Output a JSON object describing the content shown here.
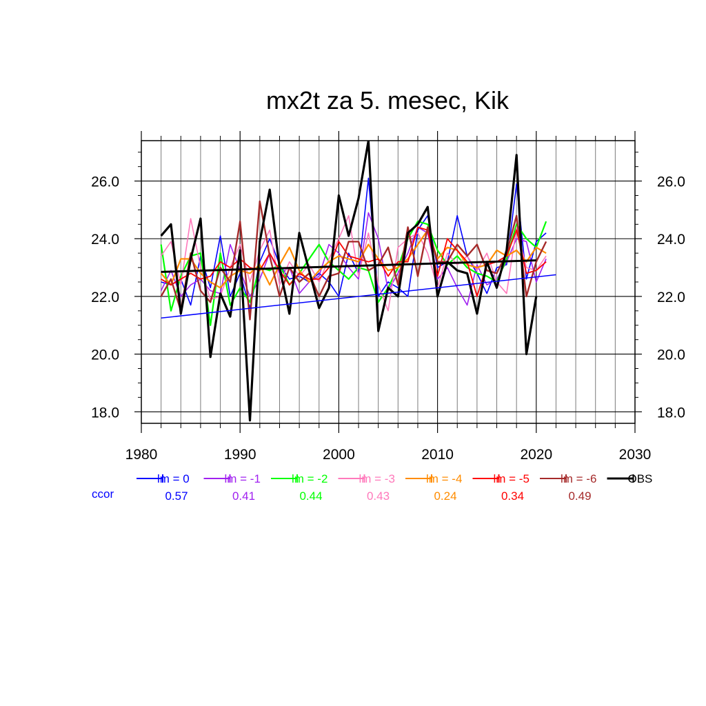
{
  "chart_data": {
    "type": "line",
    "title": "mx2t za 5. mesec, Kik",
    "xlabel": "",
    "ylabel": "",
    "xlim": [
      1980,
      2030
    ],
    "ylim": [
      17.6,
      27.4
    ],
    "x_ticks": [
      1980,
      1990,
      2000,
      2010,
      2020,
      2030
    ],
    "x_tick_labels": [
      "1980",
      "1990",
      "2000",
      "2010",
      "2020",
      "2030"
    ],
    "y_ticks": [
      18,
      20,
      22,
      24,
      26
    ],
    "y_tick_labels": [
      "18.0",
      "20.0",
      "22.0",
      "24.0",
      "26.0"
    ],
    "grid": true,
    "legend_position": "bottom",
    "ccor_label": "ccor",
    "series": [
      {
        "name": "lm = 0",
        "color": "#0000ff",
        "width": 1.6,
        "ccor": "0.57",
        "x": [
          1982,
          1983,
          1984,
          1985,
          1986,
          1987,
          1988,
          1989,
          1990,
          1991,
          1992,
          1993,
          1994,
          1995,
          1996,
          1997,
          1998,
          1999,
          2000,
          2001,
          2002,
          2003,
          2004,
          2005,
          2006,
          2007,
          2008,
          2009,
          2010,
          2011,
          2012,
          2013,
          2014,
          2015,
          2016,
          2017,
          2018,
          2019,
          2020,
          2021
        ],
        "values": [
          22.5,
          22.4,
          22.6,
          21.7,
          23.4,
          22.3,
          24.1,
          22.0,
          22.8,
          21.6,
          23.2,
          24.0,
          23.1,
          22.6,
          22.7,
          22.5,
          22.8,
          22.5,
          22.0,
          23.5,
          22.8,
          26.1,
          22.0,
          22.5,
          22.3,
          22.0,
          24.3,
          24.8,
          23.0,
          23.2,
          24.8,
          23.4,
          22.8,
          22.1,
          23.0,
          23.1,
          25.9,
          22.6,
          23.9,
          24.2
        ],
        "trend": [
          21.25,
          22.75
        ]
      },
      {
        "name": "lm = -1",
        "color": "#a020f0",
        "width": 1.6,
        "ccor": "0.41",
        "x": [
          1982,
          1983,
          1984,
          1985,
          1986,
          1987,
          1988,
          1989,
          1990,
          1991,
          1992,
          1993,
          1994,
          1995,
          1996,
          1997,
          1998,
          1999,
          2000,
          2001,
          2002,
          2003,
          2004,
          2005,
          2006,
          2007,
          2008,
          2009,
          2010,
          2011,
          2012,
          2013,
          2014,
          2015,
          2016,
          2017,
          2018,
          2019,
          2020,
          2021
        ],
        "values": [
          22.2,
          22.9,
          22.0,
          22.4,
          22.6,
          22.2,
          22.1,
          23.8,
          22.9,
          22.0,
          22.6,
          23.5,
          22.8,
          23.0,
          22.1,
          22.5,
          22.7,
          23.8,
          23.5,
          23.0,
          22.6,
          24.9,
          24.0,
          22.2,
          22.8,
          23.5,
          24.4,
          24.2,
          22.6,
          23.0,
          22.3,
          21.7,
          23.1,
          22.4,
          22.6,
          23.2,
          24.0,
          23.9,
          22.5,
          23.3
        ]
      },
      {
        "name": "lm = -2",
        "color": "#00ff00",
        "width": 2.2,
        "ccor": "0.44",
        "x": [
          1982,
          1983,
          1984,
          1985,
          1986,
          1987,
          1988,
          1989,
          1990,
          1991,
          1992,
          1993,
          1994,
          1995,
          1996,
          1997,
          1998,
          1999,
          2000,
          2001,
          2002,
          2003,
          2004,
          2005,
          2006,
          2007,
          2008,
          2009,
          2010,
          2011,
          2012,
          2013,
          2014,
          2015,
          2016,
          2017,
          2018,
          2019,
          2020,
          2021
        ],
        "values": [
          23.8,
          21.5,
          22.7,
          23.4,
          23.5,
          21.0,
          23.5,
          21.7,
          22.3,
          21.8,
          23.0,
          22.9,
          23.1,
          22.4,
          22.8,
          23.3,
          23.8,
          23.2,
          22.9,
          22.6,
          23.0,
          22.9,
          21.8,
          22.3,
          23.0,
          24.0,
          24.6,
          24.5,
          23.6,
          23.1,
          23.4,
          23.0,
          22.8,
          22.7,
          22.5,
          23.3,
          24.5,
          24.0,
          23.7,
          24.6
        ]
      },
      {
        "name": "lm = -3",
        "color": "#ff79bb",
        "width": 1.6,
        "ccor": "0.43",
        "x": [
          1982,
          1983,
          1984,
          1985,
          1986,
          1987,
          1988,
          1989,
          1990,
          1991,
          1992,
          1993,
          1994,
          1995,
          1996,
          1997,
          1998,
          1999,
          2000,
          2001,
          2002,
          2003,
          2004,
          2005,
          2006,
          2007,
          2008,
          2009,
          2010,
          2011,
          2012,
          2013,
          2014,
          2015,
          2016,
          2017,
          2018,
          2019,
          2020,
          2021
        ],
        "values": [
          23.4,
          23.9,
          22.4,
          24.7,
          23.0,
          21.9,
          22.0,
          23.0,
          23.8,
          22.5,
          23.6,
          24.3,
          22.4,
          23.2,
          22.7,
          23.1,
          22.5,
          23.3,
          24.0,
          24.8,
          22.7,
          24.2,
          22.4,
          21.5,
          23.7,
          24.0,
          24.2,
          23.5,
          22.3,
          23.5,
          23.1,
          23.4,
          22.9,
          23.5,
          22.5,
          22.1,
          24.4,
          23.0,
          22.9,
          23.4
        ]
      },
      {
        "name": "lm = -4",
        "color": "#ff8c00",
        "width": 2.2,
        "ccor": "0.24",
        "x": [
          1982,
          1983,
          1984,
          1985,
          1986,
          1987,
          1988,
          1989,
          1990,
          1991,
          1992,
          1993,
          1994,
          1995,
          1996,
          1997,
          1998,
          1999,
          2000,
          2001,
          2002,
          2003,
          2004,
          2005,
          2006,
          2007,
          2008,
          2009,
          2010,
          2011,
          2012,
          2013,
          2014,
          2015,
          2016,
          2017,
          2018,
          2019,
          2020,
          2021
        ],
        "values": [
          22.8,
          22.4,
          23.3,
          23.3,
          22.8,
          22.5,
          22.3,
          22.7,
          22.9,
          22.8,
          23.1,
          22.4,
          23.1,
          23.7,
          22.9,
          22.5,
          22.9,
          23.2,
          23.4,
          23.3,
          23.2,
          23.8,
          23.3,
          22.9,
          23.0,
          23.3,
          23.8,
          24.3,
          23.3,
          23.7,
          23.6,
          23.1,
          23.0,
          23.1,
          23.6,
          23.4,
          23.6,
          23.2,
          23.7,
          23.5
        ]
      },
      {
        "name": "lm = -5",
        "color": "#ff0000",
        "width": 1.8,
        "ccor": "0.34",
        "x": [
          1982,
          1983,
          1984,
          1985,
          1986,
          1987,
          1988,
          1989,
          1990,
          1991,
          1992,
          1993,
          1994,
          1995,
          1996,
          1997,
          1998,
          1999,
          2000,
          2001,
          2002,
          2003,
          2004,
          2005,
          2006,
          2007,
          2008,
          2009,
          2010,
          2011,
          2012,
          2013,
          2014,
          2015,
          2016,
          2017,
          2018,
          2019,
          2020,
          2021
        ],
        "values": [
          22.6,
          22.4,
          22.6,
          22.8,
          22.6,
          22.7,
          23.2,
          23.0,
          23.3,
          23.0,
          22.9,
          23.5,
          22.9,
          22.4,
          22.8,
          22.6,
          22.6,
          23.0,
          23.9,
          23.4,
          23.3,
          23.2,
          23.3,
          22.7,
          23.2,
          23.2,
          24.4,
          24.3,
          22.7,
          24.0,
          23.6,
          23.2,
          22.0,
          23.1,
          23.2,
          23.4,
          24.3,
          22.8,
          22.9,
          23.2
        ]
      },
      {
        "name": "lm = -6",
        "color": "#a52a2a",
        "width": 2.4,
        "ccor": "0.49",
        "x": [
          1982,
          1983,
          1984,
          1985,
          1986,
          1987,
          1988,
          1989,
          1990,
          1991,
          1992,
          1993,
          1994,
          1995,
          1996,
          1997,
          1998,
          1999,
          2000,
          2001,
          2002,
          2003,
          2004,
          2005,
          2006,
          2007,
          2008,
          2009,
          2010,
          2011,
          2012,
          2013,
          2014,
          2015,
          2016,
          2017,
          2018,
          2019,
          2020,
          2021
        ],
        "values": [
          22.0,
          22.6,
          21.5,
          23.5,
          22.2,
          21.8,
          23.0,
          22.5,
          24.6,
          21.2,
          25.3,
          23.4,
          22.0,
          23.0,
          22.5,
          22.8,
          22.0,
          22.7,
          22.8,
          23.9,
          23.9,
          22.9,
          23.1,
          23.7,
          22.4,
          24.4,
          22.7,
          24.4,
          23.2,
          23.2,
          23.8,
          23.4,
          23.8,
          22.9,
          22.8,
          23.5,
          24.8,
          22.0,
          23.2,
          23.9
        ]
      },
      {
        "name": "OBS",
        "color": "#000000",
        "width": 3.2,
        "ccor": "",
        "x": [
          1982,
          1983,
          1984,
          1985,
          1986,
          1987,
          1988,
          1989,
          1990,
          1991,
          1992,
          1993,
          1994,
          1995,
          1996,
          1997,
          1998,
          1999,
          2000,
          2001,
          2002,
          2003,
          2004,
          2005,
          2006,
          2007,
          2008,
          2009,
          2010,
          2011,
          2012,
          2013,
          2014,
          2015,
          2016,
          2017,
          2018,
          2019,
          2020
        ],
        "values": [
          24.1,
          24.5,
          21.4,
          23.3,
          24.7,
          19.9,
          22.1,
          21.3,
          23.6,
          17.7,
          23.9,
          25.7,
          23.0,
          21.4,
          24.2,
          22.9,
          21.6,
          22.3,
          25.5,
          24.1,
          25.4,
          27.4,
          20.8,
          22.3,
          22.0,
          24.2,
          24.5,
          25.1,
          22.0,
          23.2,
          22.9,
          22.8,
          21.4,
          23.2,
          22.3,
          23.6,
          26.9,
          20.0,
          22.0
        ],
        "trend": [
          22.85,
          23.25
        ]
      }
    ]
  }
}
